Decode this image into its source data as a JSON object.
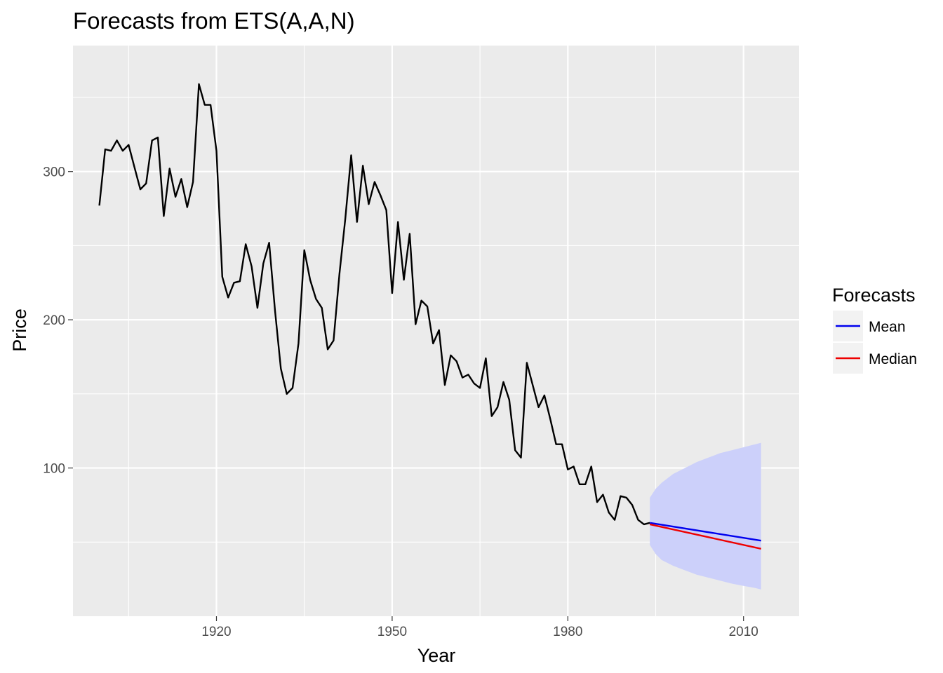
{
  "chart_data": {
    "type": "line",
    "title": "Forecasts from ETS(A,A,N)",
    "xlabel": "Year",
    "ylabel": "Price",
    "xlim": [
      1895.5,
      2019.5
    ],
    "ylim": [
      0,
      385
    ],
    "x_ticks": [
      1920,
      1950,
      1980,
      2010
    ],
    "x_tick_labels": [
      "1920",
      "1950",
      "1980",
      "2010"
    ],
    "x_minor_ticks": [
      1905,
      1935,
      1965,
      1995
    ],
    "y_ticks": [
      100,
      200,
      300
    ],
    "y_tick_labels": [
      "100",
      "200",
      "300"
    ],
    "y_minor_ticks": [
      50,
      150,
      250,
      350
    ],
    "grid": true,
    "colors": {
      "panel": "#ebebeb",
      "grid": "#ffffff",
      "series": "#000000",
      "mean": "#0000ee",
      "median": "#ee0000",
      "interval": "#ccd0fa",
      "legend_key_bg": "#f2f2f2"
    },
    "legend": {
      "title": "Forecasts",
      "position": "right",
      "entries": [
        {
          "label": "Mean",
          "color": "#0000ee"
        },
        {
          "label": "Median",
          "color": "#ee0000"
        }
      ]
    },
    "series": [
      {
        "key": "observed",
        "color": "#000000",
        "x": [
          1900,
          1901,
          1902,
          1903,
          1904,
          1905,
          1906,
          1907,
          1908,
          1909,
          1910,
          1911,
          1912,
          1913,
          1914,
          1915,
          1916,
          1917,
          1918,
          1919,
          1920,
          1921,
          1922,
          1923,
          1924,
          1925,
          1926,
          1927,
          1928,
          1929,
          1930,
          1931,
          1932,
          1933,
          1934,
          1935,
          1936,
          1937,
          1938,
          1939,
          1940,
          1941,
          1942,
          1943,
          1944,
          1945,
          1946,
          1947,
          1948,
          1949,
          1950,
          1951,
          1952,
          1953,
          1954,
          1955,
          1956,
          1957,
          1958,
          1959,
          1960,
          1961,
          1962,
          1963,
          1964,
          1965,
          1966,
          1967,
          1968,
          1969,
          1970,
          1971,
          1972,
          1973,
          1974,
          1975,
          1976,
          1977,
          1978,
          1979,
          1980,
          1981,
          1982,
          1983,
          1984,
          1985,
          1986,
          1987,
          1988,
          1989,
          1990,
          1991,
          1992,
          1993,
          1994
        ],
        "y": [
          277,
          315,
          314,
          321,
          314,
          318,
          303,
          288,
          292,
          321,
          323,
          270,
          302,
          283,
          295,
          276,
          293,
          359,
          345,
          345,
          314,
          229,
          215,
          225,
          226,
          251,
          236,
          208,
          238,
          252,
          206,
          167,
          150,
          154,
          184,
          247,
          227,
          214,
          208,
          180,
          186,
          231,
          268,
          311,
          266,
          304,
          278,
          293,
          284,
          274,
          218,
          266,
          227,
          258,
          197,
          213,
          209,
          184,
          193,
          156,
          176,
          172,
          161,
          163,
          157,
          154,
          174,
          135,
          141,
          158,
          146,
          112,
          107,
          171,
          156,
          141,
          149,
          133,
          116,
          116,
          99,
          101,
          89,
          89,
          101,
          77,
          82,
          70,
          65,
          81,
          80,
          75,
          65,
          62,
          63
        ]
      },
      {
        "key": "mean",
        "color": "#0000ee",
        "x": [
          1994,
          2013
        ],
        "y": [
          63,
          51
        ]
      },
      {
        "key": "median",
        "color": "#ee0000",
        "x": [
          1994,
          2013
        ],
        "y": [
          62,
          45.5
        ]
      }
    ],
    "interval": {
      "x": [
        1994,
        1995,
        1996,
        1998,
        2000,
        2002,
        2004,
        2006,
        2008,
        2010,
        2012,
        2013
      ],
      "upper": [
        80,
        86,
        90,
        96,
        100,
        104,
        107,
        110,
        112,
        114,
        116,
        117
      ],
      "lower": [
        48,
        42,
        38,
        34,
        31,
        28,
        26,
        24,
        22,
        20.5,
        19,
        18
      ]
    }
  }
}
